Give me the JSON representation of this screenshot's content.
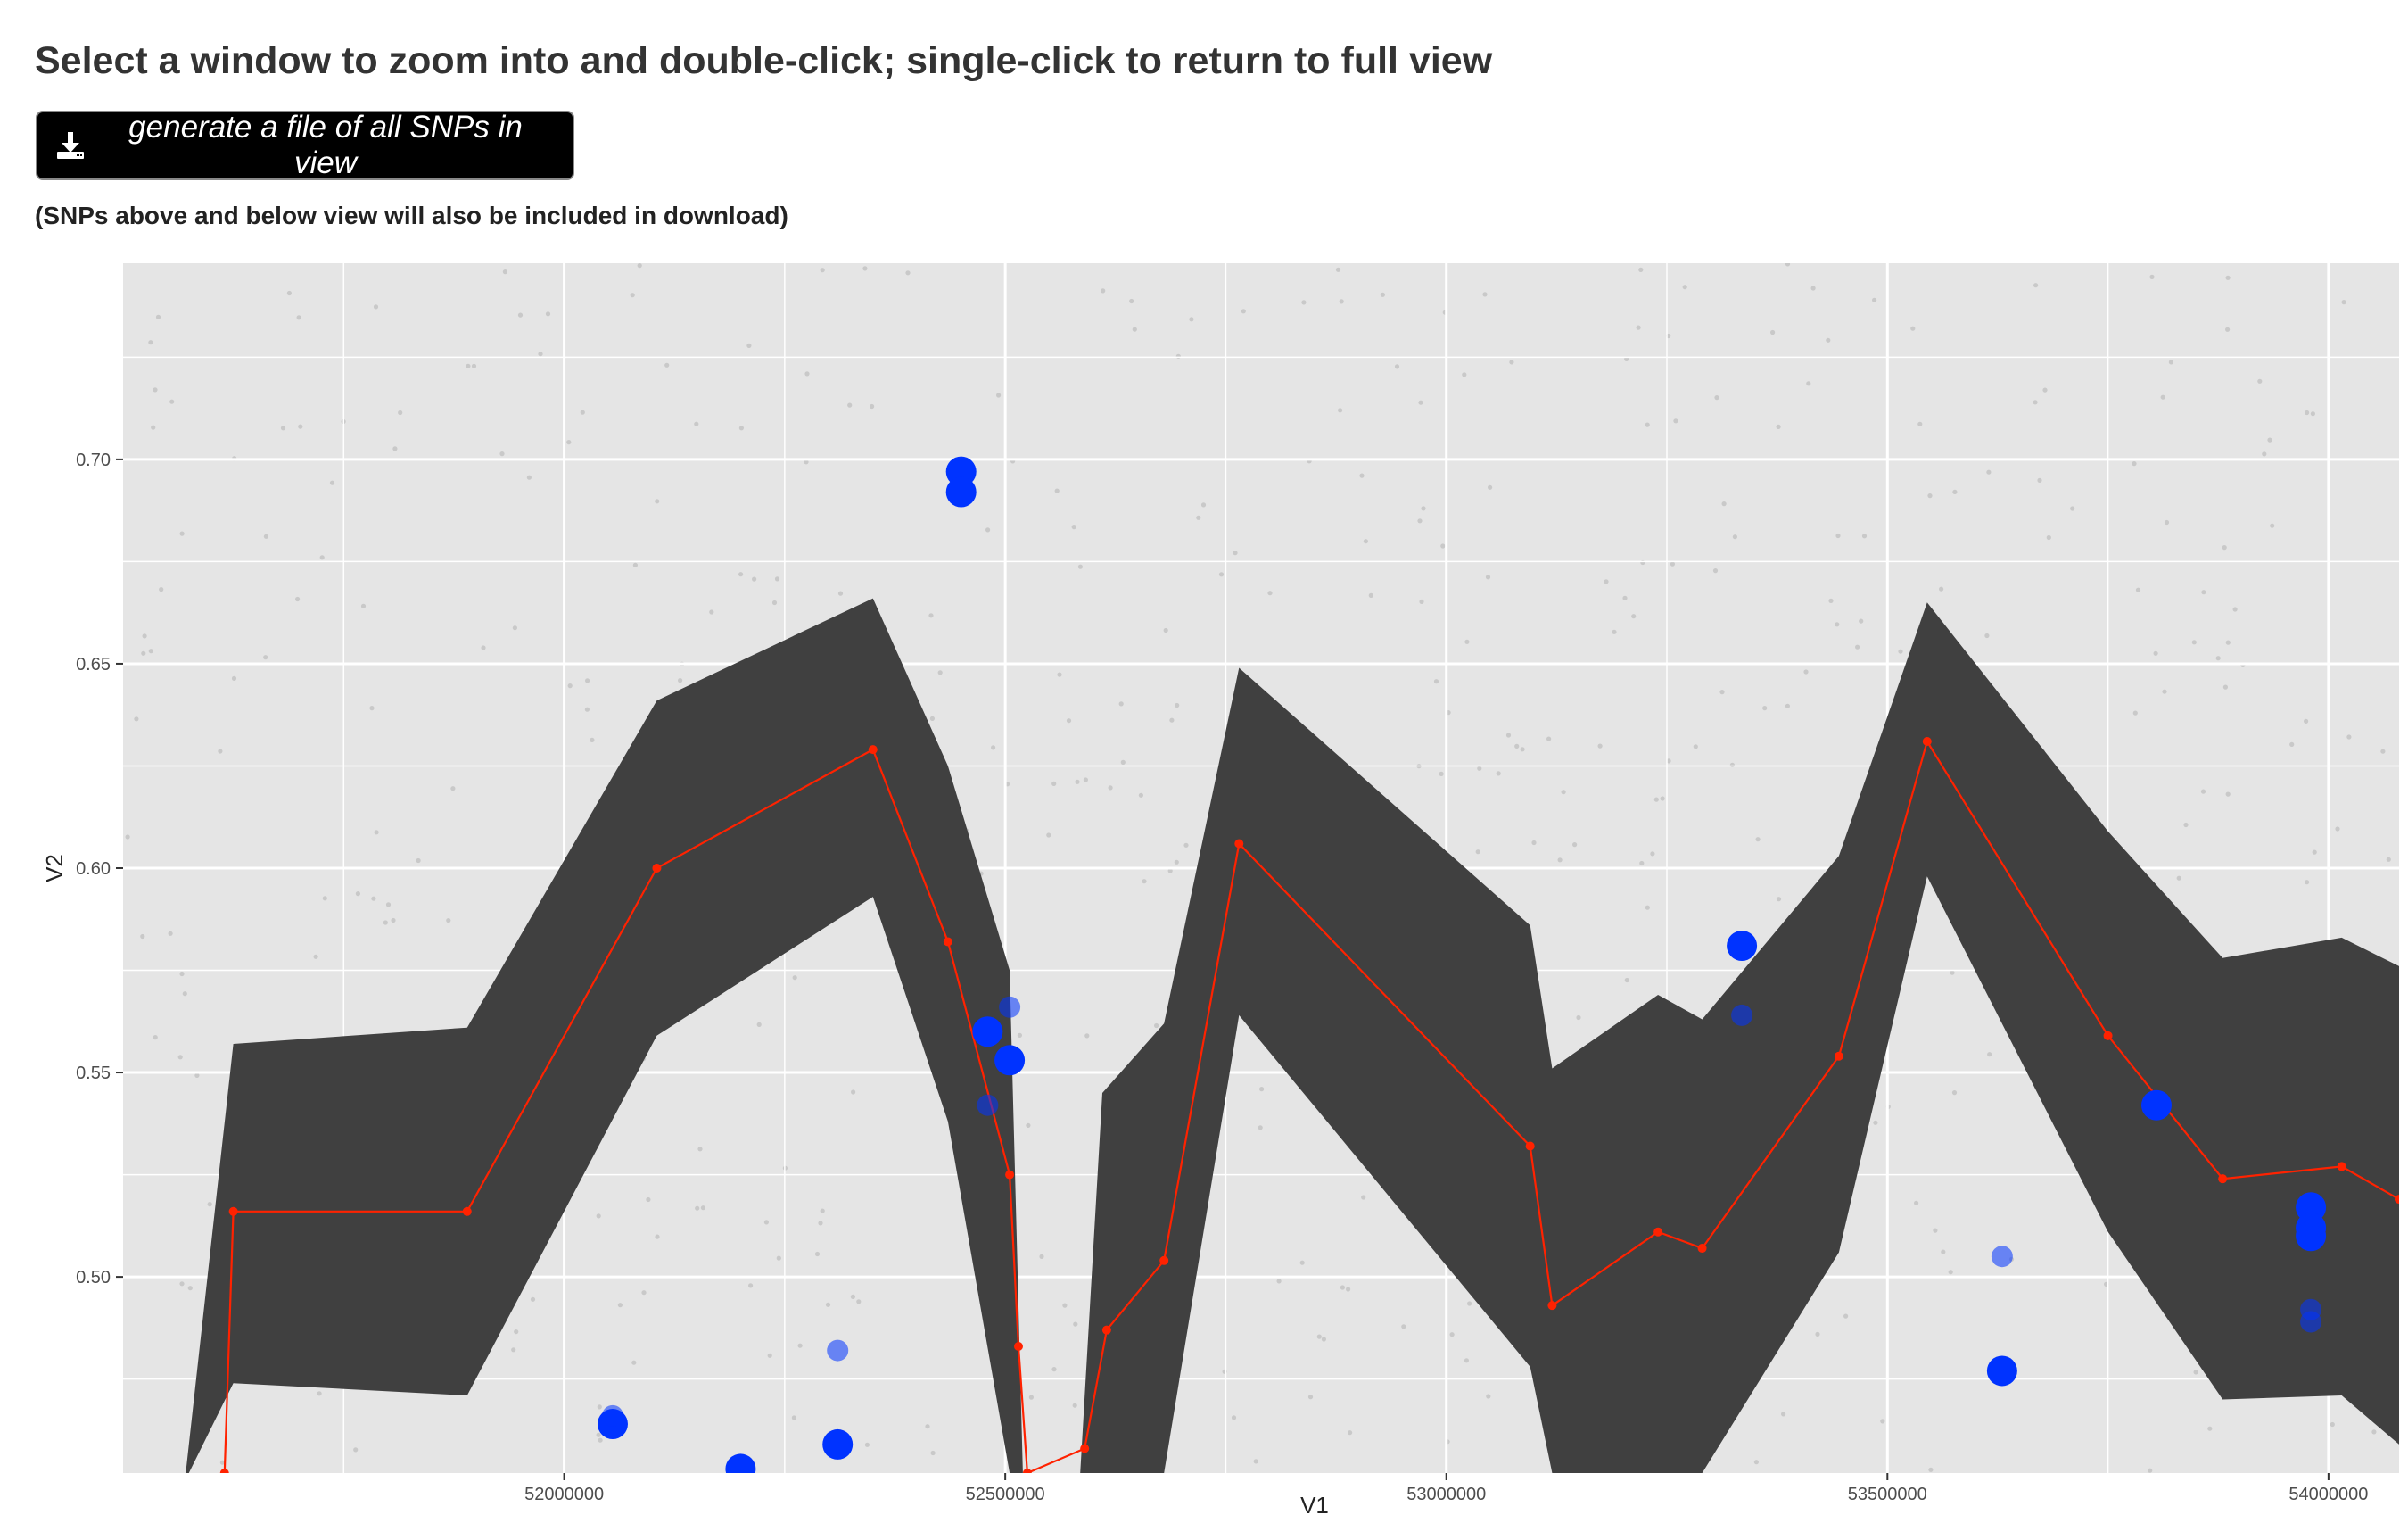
{
  "header": {
    "title": "Select a window to zoom into and double-click; single-click to return to full view",
    "download_label": "generate a file of all SNPs in view",
    "download_icon": "download-icon",
    "note": "(SNPs above and below view will also be included in download)"
  },
  "chart_data": {
    "type": "scatter",
    "xlabel": "V1",
    "ylabel": "V2",
    "xlim": [
      51500000,
      54080000
    ],
    "ylim": [
      0.452,
      0.748
    ],
    "x_ticks": [
      52000000,
      52500000,
      53000000,
      53500000,
      54000000
    ],
    "x_tick_labels": [
      "52000000",
      "52500000",
      "53000000",
      "53500000",
      "54000000"
    ],
    "y_ticks": [
      0.5,
      0.55,
      0.6,
      0.65,
      0.7
    ],
    "y_tick_labels": [
      "0.50",
      "0.55",
      "0.60",
      "0.65",
      "0.70"
    ],
    "grid": true,
    "colors": {
      "panel": "#e5e5e5",
      "grid": "#ffffff",
      "ribbon": "#404040",
      "line": "#ff2200",
      "points": "#0033ff"
    },
    "series": [
      {
        "role": "ribbon",
        "x": [
          51570000,
          51625000,
          51890000,
          52105000,
          52350000,
          52435000,
          52505000,
          52520000,
          52585000,
          52610000,
          52680000,
          52765000,
          53095000,
          53120000,
          53240000,
          53290000,
          53445000,
          53545000,
          53750000,
          53880000,
          54015000,
          54080000
        ],
        "upper": [
          0.45,
          0.557,
          0.561,
          0.641,
          0.666,
          0.625,
          0.575,
          0.452,
          0.452,
          0.545,
          0.562,
          0.649,
          0.586,
          0.551,
          0.569,
          0.563,
          0.603,
          0.665,
          0.609,
          0.578,
          0.583,
          0.576
        ],
        "lower": [
          0.45,
          0.474,
          0.471,
          0.559,
          0.593,
          0.538,
          0.452,
          0.452,
          0.452,
          0.452,
          0.452,
          0.564,
          0.478,
          0.452,
          0.452,
          0.452,
          0.506,
          0.598,
          0.511,
          0.47,
          0.471,
          0.459
        ]
      },
      {
        "role": "line",
        "x": [
          51615000,
          51625000,
          51890000,
          52105000,
          52350000,
          52435000,
          52505000,
          52515000,
          52525000,
          52590000,
          52615000,
          52680000,
          52765000,
          53095000,
          53120000,
          53240000,
          53290000,
          53445000,
          53545000,
          53750000,
          53880000,
          54015000,
          54080000
        ],
        "y": [
          0.452,
          0.516,
          0.516,
          0.6,
          0.629,
          0.582,
          0.525,
          0.483,
          0.452,
          0.458,
          0.487,
          0.504,
          0.606,
          0.532,
          0.493,
          0.511,
          0.507,
          0.554,
          0.631,
          0.559,
          0.524,
          0.527,
          0.519
        ]
      },
      {
        "role": "snps",
        "points": [
          {
            "x": 52450000,
            "y": 0.697,
            "size": "large",
            "alpha": 1.0
          },
          {
            "x": 52450000,
            "y": 0.692,
            "size": "large",
            "alpha": 1.0
          },
          {
            "x": 52480000,
            "y": 0.56,
            "size": "large",
            "alpha": 1.0
          },
          {
            "x": 52505000,
            "y": 0.553,
            "size": "large",
            "alpha": 1.0
          },
          {
            "x": 52505000,
            "y": 0.566,
            "size": "medium",
            "alpha": 0.55
          },
          {
            "x": 52480000,
            "y": 0.542,
            "size": "medium",
            "alpha": 0.55
          },
          {
            "x": 52055000,
            "y": 0.464,
            "size": "large",
            "alpha": 1.0
          },
          {
            "x": 52055000,
            "y": 0.466,
            "size": "medium",
            "alpha": 0.55
          },
          {
            "x": 52310000,
            "y": 0.459,
            "size": "large",
            "alpha": 1.0
          },
          {
            "x": 52310000,
            "y": 0.482,
            "size": "medium",
            "alpha": 0.55
          },
          {
            "x": 52200000,
            "y": 0.453,
            "size": "large",
            "alpha": 1.0
          },
          {
            "x": 53335000,
            "y": 0.581,
            "size": "large",
            "alpha": 1.0
          },
          {
            "x": 53335000,
            "y": 0.564,
            "size": "medium",
            "alpha": 0.55
          },
          {
            "x": 53630000,
            "y": 0.477,
            "size": "large",
            "alpha": 1.0
          },
          {
            "x": 53630000,
            "y": 0.505,
            "size": "medium",
            "alpha": 0.55
          },
          {
            "x": 53805000,
            "y": 0.542,
            "size": "large",
            "alpha": 1.0
          },
          {
            "x": 53980000,
            "y": 0.517,
            "size": "large",
            "alpha": 1.0
          },
          {
            "x": 53980000,
            "y": 0.512,
            "size": "large",
            "alpha": 1.0
          },
          {
            "x": 53980000,
            "y": 0.51,
            "size": "large",
            "alpha": 1.0
          },
          {
            "x": 53980000,
            "y": 0.492,
            "size": "medium",
            "alpha": 0.55
          },
          {
            "x": 53980000,
            "y": 0.489,
            "size": "medium",
            "alpha": 0.55
          }
        ]
      }
    ]
  }
}
